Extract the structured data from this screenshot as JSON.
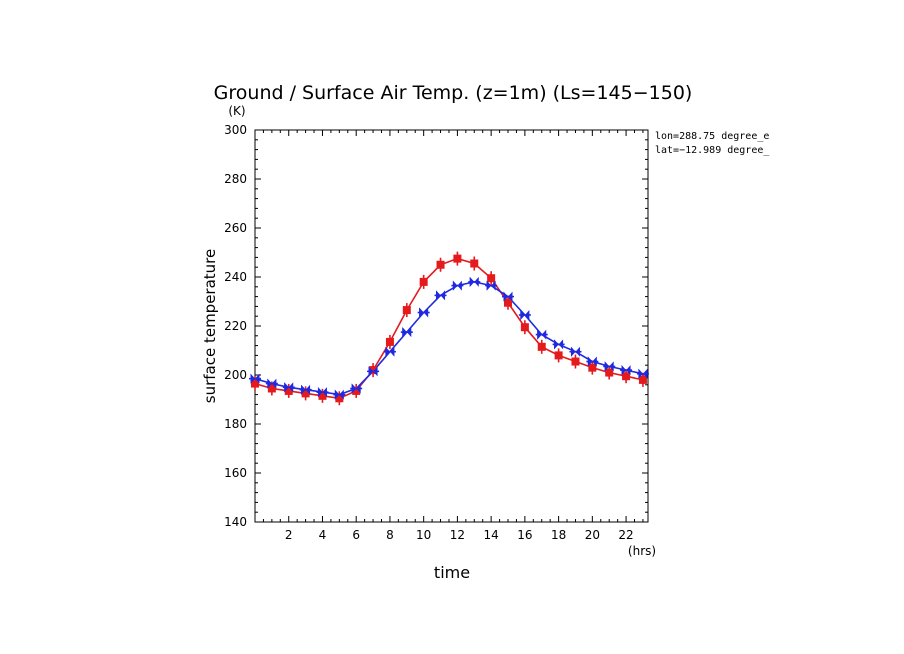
{
  "chart_data": {
    "type": "line",
    "title": "Ground / Surface Air Temp. (z=1m) (Ls=145−150)",
    "xlabel": "time",
    "ylabel": "surface temperature",
    "x_unit": "(hrs)",
    "y_unit": "(K)",
    "xlim": [
      0,
      23.3
    ],
    "ylim": [
      140,
      300
    ],
    "x_ticks": [
      2,
      4,
      6,
      8,
      10,
      12,
      14,
      16,
      18,
      20,
      22
    ],
    "y_ticks": [
      140,
      160,
      180,
      200,
      220,
      240,
      260,
      280,
      300
    ],
    "grid": false,
    "annotations": [
      "lon=288.75 degree_e",
      "lat=−12.989 degree_"
    ],
    "x": [
      0.0,
      1.0,
      2.0,
      3.0,
      4.0,
      5.0,
      6.0,
      7.0,
      8.0,
      9.0,
      10.0,
      11.0,
      12.0,
      13.0,
      14.0,
      15.0,
      16.0,
      17.0,
      18.0,
      19.0,
      20.0,
      21.0,
      22.0,
      23.0
    ],
    "series": [
      {
        "color": "#e41a1c",
        "marker": "square",
        "values": [
          196.5,
          194.5,
          193.5,
          192.5,
          191.5,
          190.5,
          193.5,
          202.0,
          213.5,
          226.5,
          238.0,
          245.0,
          247.5,
          245.5,
          239.5,
          229.5,
          219.5,
          211.5,
          208.0,
          205.5,
          203.0,
          201.0,
          199.5,
          198.0
        ]
      },
      {
        "color": "#1f2ae0",
        "marker": "bowtie",
        "values": [
          198.5,
          196.5,
          195.0,
          194.0,
          193.0,
          192.0,
          194.5,
          201.5,
          209.5,
          217.5,
          225.5,
          232.5,
          236.5,
          238.0,
          236.5,
          232.0,
          224.5,
          216.5,
          212.5,
          209.5,
          205.5,
          203.5,
          202.0,
          200.5
        ]
      }
    ]
  }
}
